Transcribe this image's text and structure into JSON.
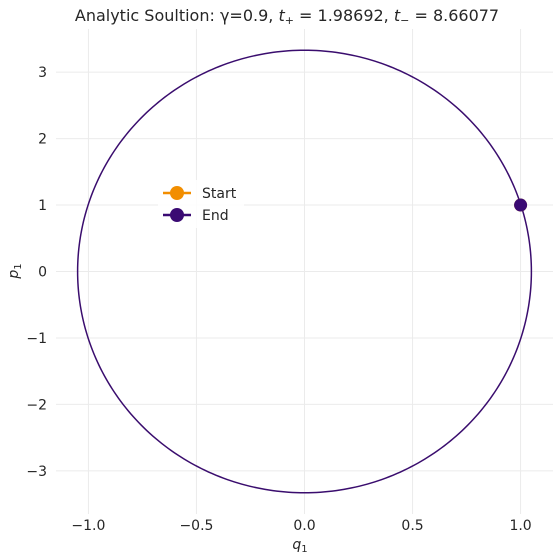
{
  "chart_data": {
    "type": "line",
    "title": "Analytic Soultion: γ=0.9, t₊ = 1.98692, t₋ = 8.66077",
    "title_parts": {
      "prefix": "Analytic Soultion: γ=0.9, ",
      "t_plus": "t",
      "t_plus_sub": "+",
      "t_plus_value": " = 1.98692, ",
      "t_minus": "t",
      "t_minus_sub": "−",
      "t_minus_value": " = 8.66077"
    },
    "xlabel": "q",
    "xlabel_sub": "1",
    "ylabel": "p",
    "ylabel_sub": "1",
    "xlim": [
      -1.15,
      1.15
    ],
    "ylim": [
      -3.65,
      3.65
    ],
    "x_ticks": [
      -1.0,
      -0.5,
      0.0,
      0.5,
      1.0
    ],
    "x_tick_labels": [
      "−1.0",
      "−0.5",
      "0.0",
      "0.5",
      "1.0"
    ],
    "y_ticks": [
      -3,
      -2,
      -1,
      0,
      1,
      2,
      3
    ],
    "y_tick_labels": [
      "−3",
      "−2",
      "−1",
      "0",
      "1",
      "2",
      "3"
    ],
    "grid": true,
    "legend_placement": "center-left",
    "colors": {
      "trajectory": "#3a0d6e",
      "start": "#f28e00",
      "end": "#3a0a73",
      "grid": "#ebebeb"
    },
    "trajectory": {
      "shape": "ellipse",
      "center": [
        0.0,
        0.0
      ],
      "q_semi_axis": 1.05,
      "p_semi_axis": 3.33
    },
    "series": [
      {
        "name": "Start",
        "points": [
          [
            1.0,
            1.0
          ]
        ]
      },
      {
        "name": "End",
        "points": [
          [
            1.0,
            1.0
          ]
        ]
      }
    ]
  }
}
